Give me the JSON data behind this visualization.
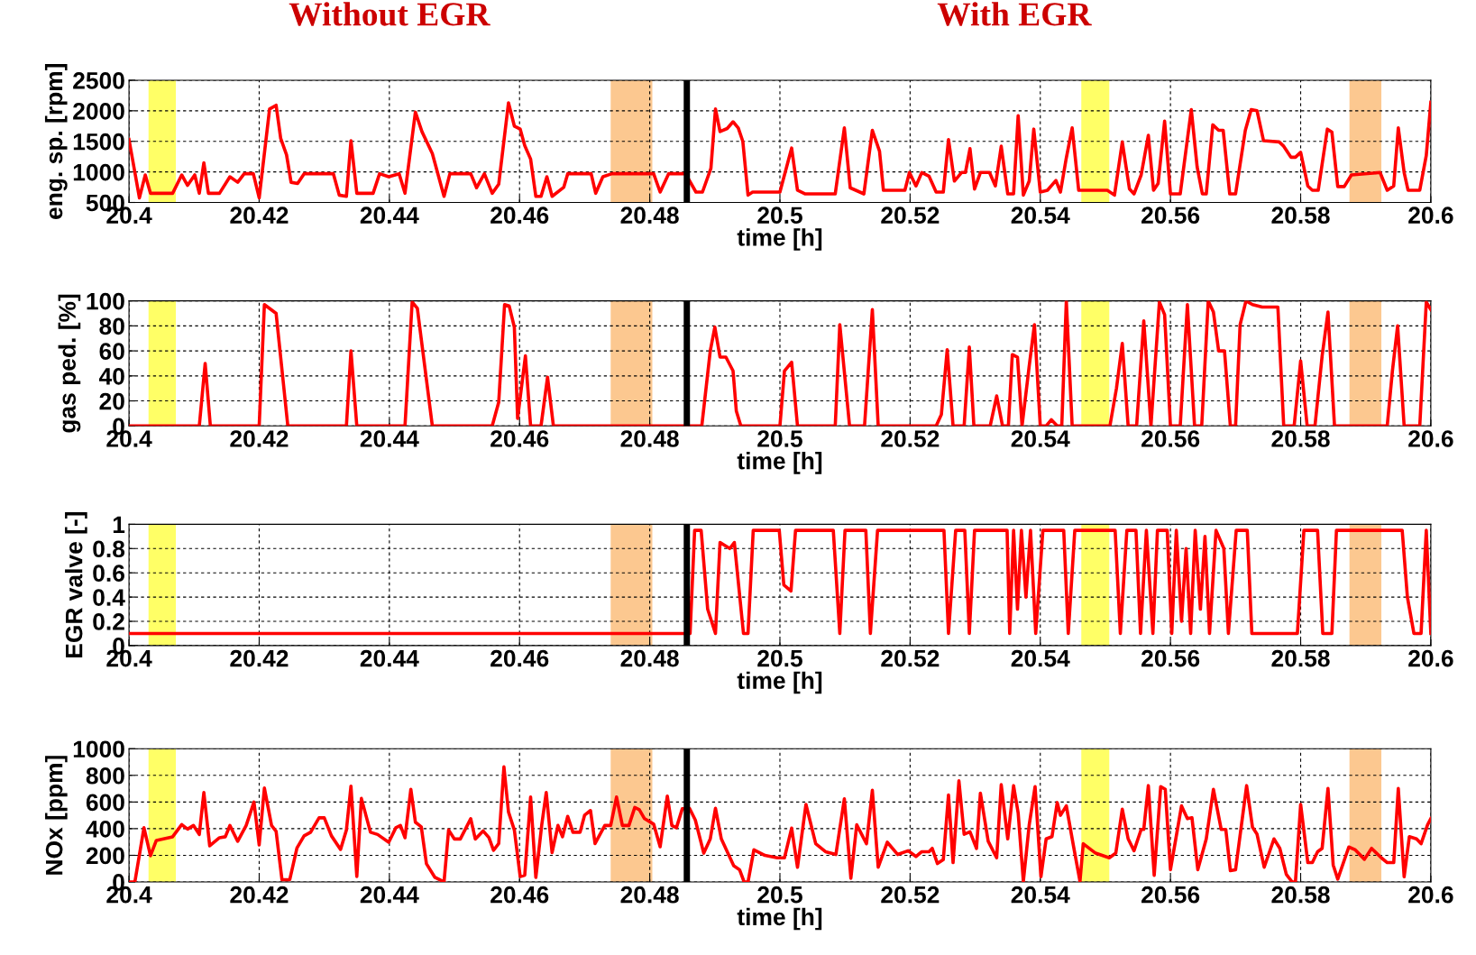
{
  "chart_data": [
    {
      "type": "line",
      "annotations": [
        "Without EGR",
        "With EGR"
      ],
      "xlabel": "time [h]",
      "ylabel": "eng. sp. [rpm]",
      "x": [
        20.4,
        20.4016,
        20.4025,
        20.4033,
        20.4067,
        20.4081,
        20.409,
        20.4101,
        20.4108,
        20.4115,
        20.4122,
        20.4139,
        20.4155,
        20.4167,
        20.4177,
        20.4191,
        20.42,
        20.4216,
        20.4226,
        20.4233,
        20.4242,
        20.4249,
        20.4259,
        20.4269,
        20.4314,
        20.4323,
        20.4334,
        20.4341,
        20.435,
        20.4375,
        20.4385,
        20.4399,
        20.4415,
        20.4424,
        20.444,
        20.445,
        20.4466,
        20.4484,
        20.4493,
        20.4525,
        20.4534,
        20.4546,
        20.4558,
        20.4568,
        20.4583,
        20.4592,
        20.4601,
        20.4608,
        20.4617,
        20.4625,
        20.4633,
        20.4642,
        20.465,
        20.4668,
        20.4674,
        20.471,
        20.4717,
        20.4728,
        20.4742,
        20.4806,
        20.4816,
        20.4829,
        20.4855,
        20.4871,
        20.4881,
        20.4894,
        20.4901,
        20.4908,
        20.4919,
        20.4928,
        20.4936,
        20.4943,
        20.4951,
        20.4958,
        20.5,
        20.5018,
        20.5027,
        20.5039,
        20.5085,
        20.5099,
        20.5108,
        20.5129,
        20.5142,
        20.5153,
        20.5159,
        20.5192,
        20.5199,
        20.5209,
        20.5218,
        20.5229,
        20.524,
        20.5251,
        20.5259,
        20.5268,
        20.5279,
        20.5285,
        20.5292,
        20.5299,
        20.5308,
        20.5322,
        20.5331,
        20.534,
        20.535,
        20.5359,
        20.5366,
        20.5374,
        20.5383,
        20.539,
        20.54,
        20.5411,
        20.5424,
        20.5431,
        20.544,
        20.5449,
        20.5459,
        20.5503,
        20.5514,
        20.5526,
        20.5537,
        20.5544,
        20.5555,
        20.5566,
        20.5574,
        20.5581,
        20.5591,
        20.56,
        20.5615,
        20.5632,
        20.5641,
        20.5649,
        20.5655,
        20.5665,
        20.5674,
        20.5681,
        20.5691,
        20.57,
        20.5715,
        20.5724,
        20.5733,
        20.5743,
        20.5767,
        20.5774,
        20.5785,
        20.5792,
        20.58,
        20.5811,
        20.5818,
        20.5827,
        20.5841,
        20.5848,
        20.5857,
        20.5867,
        20.5878,
        20.5922,
        20.5933,
        20.5943,
        20.595,
        20.5959,
        20.5965,
        20.5983,
        20.5993,
        20.6
      ],
      "series": [
        {
          "color": "#ff0000",
          "values": [
            1530,
            575,
            950,
            650,
            650,
            950,
            780,
            950,
            650,
            1150,
            650,
            650,
            920,
            830,
            970,
            970,
            575,
            2030,
            2090,
            1550,
            1280,
            830,
            810,
            970,
            970,
            620,
            600,
            1510,
            650,
            650,
            970,
            920,
            970,
            650,
            1980,
            1660,
            1300,
            600,
            970,
            970,
            740,
            970,
            650,
            800,
            2130,
            1750,
            1700,
            1430,
            1210,
            600,
            600,
            920,
            600,
            750,
            970,
            970,
            650,
            920,
            970,
            970,
            670,
            970,
            970,
            670,
            670,
            1060,
            2030,
            1660,
            1710,
            1820,
            1720,
            1500,
            620,
            670,
            670,
            1390,
            700,
            640,
            640,
            1720,
            740,
            640,
            1680,
            1340,
            700,
            700,
            990,
            770,
            990,
            930,
            670,
            670,
            1530,
            850,
            990,
            990,
            1380,
            720,
            990,
            990,
            770,
            1420,
            640,
            640,
            1920,
            620,
            850,
            1700,
            670,
            700,
            860,
            670,
            1230,
            1720,
            700,
            700,
            620,
            1490,
            720,
            640,
            950,
            1600,
            700,
            810,
            1830,
            640,
            640,
            2020,
            1080,
            640,
            640,
            1770,
            1680,
            1680,
            640,
            640,
            1680,
            2020,
            2000,
            1510,
            1490,
            1420,
            1240,
            1240,
            1320,
            770,
            700,
            700,
            1700,
            1650,
            760,
            760,
            950,
            990,
            700,
            770,
            1720,
            990,
            700,
            700,
            1270,
            2140
          ]
        }
      ],
      "xlim": [
        20.4,
        20.6
      ],
      "ylim": [
        500,
        2500
      ],
      "xticks": [
        20.4,
        20.42,
        20.44,
        20.46,
        20.48,
        20.5,
        20.52,
        20.54,
        20.56,
        20.58,
        20.6
      ],
      "yticks": [
        500,
        1000,
        1500,
        2000,
        2500
      ],
      "grid": true,
      "bands": [
        {
          "axis": "x",
          "from": 20.403,
          "to": 20.4072,
          "color": "#ffff66"
        },
        {
          "axis": "x",
          "from": 20.474,
          "to": 20.4804,
          "color": "#fcc890"
        },
        {
          "axis": "x",
          "from": 20.5463,
          "to": 20.5506,
          "color": "#ffff66"
        },
        {
          "axis": "x",
          "from": 20.5875,
          "to": 20.5924,
          "color": "#fcc890"
        }
      ],
      "ref_lines": [
        {
          "axis": "x",
          "value": 20.4857,
          "color": "#000000"
        }
      ]
    },
    {
      "type": "line",
      "xlabel": "time [h]",
      "ylabel": "gas ped. [%]",
      "x": [
        20.4,
        20.4108,
        20.4117,
        20.4125,
        20.42,
        20.4208,
        20.4226,
        20.4244,
        20.4334,
        20.4341,
        20.435,
        20.4424,
        20.4435,
        20.4443,
        20.4466,
        20.4558,
        20.4568,
        20.4577,
        20.4584,
        20.4592,
        20.4597,
        20.4609,
        20.4617,
        20.4633,
        20.4643,
        20.4652,
        20.488,
        20.4893,
        20.49,
        20.4908,
        20.4917,
        20.4928,
        20.4933,
        20.494,
        20.5,
        20.5007,
        20.5018,
        20.5027,
        20.5085,
        20.5092,
        20.5107,
        20.513,
        20.5142,
        20.5151,
        20.524,
        20.5248,
        20.5257,
        20.5266,
        20.5283,
        20.5291,
        20.5298,
        20.5323,
        20.5333,
        20.5342,
        20.5351,
        20.5357,
        20.5365,
        20.5372,
        20.5383,
        20.5391,
        20.54,
        20.5409,
        20.5417,
        20.5426,
        20.5433,
        20.544,
        20.5449,
        20.5507,
        20.5517,
        20.5526,
        20.5535,
        20.5548,
        20.5559,
        20.557,
        20.5583,
        20.5591,
        20.56,
        20.5615,
        20.5626,
        20.5637,
        20.5648,
        20.5658,
        20.5666,
        20.5674,
        20.5683,
        20.5692,
        20.57,
        20.5707,
        20.5716,
        20.5726,
        20.5741,
        20.5765,
        20.5774,
        20.579,
        20.58,
        20.581,
        20.5822,
        20.5833,
        20.5842,
        20.5852,
        20.5933,
        20.5941,
        20.5949,
        20.5959,
        20.5983,
        20.5993,
        20.6
      ],
      "series": [
        {
          "color": "#ff0000",
          "values": [
            0,
            0,
            50,
            0,
            0,
            97,
            90,
            0,
            0,
            60,
            0,
            0,
            99,
            94,
            0,
            0,
            19,
            97,
            96,
            79,
            6,
            56,
            0,
            0,
            39,
            0,
            0,
            60,
            79,
            55,
            55,
            44,
            12,
            0,
            0,
            44,
            51,
            0,
            0,
            81,
            0,
            0,
            93,
            0,
            0,
            9,
            61,
            0,
            0,
            63,
            0,
            0,
            24,
            0,
            0,
            57,
            55,
            0,
            48,
            81,
            0,
            0,
            5,
            0,
            0,
            100,
            0,
            0,
            30,
            66,
            0,
            0,
            84,
            0,
            99,
            89,
            0,
            0,
            97,
            0,
            0,
            100,
            91,
            60,
            60,
            0,
            0,
            81,
            100,
            97,
            95,
            95,
            0,
            0,
            52,
            0,
            0,
            56,
            91,
            0,
            0,
            44,
            80,
            0,
            0,
            99,
            93
          ]
        }
      ],
      "xlim": [
        20.4,
        20.6
      ],
      "ylim": [
        0,
        100
      ],
      "xticks": [
        20.4,
        20.42,
        20.44,
        20.46,
        20.48,
        20.5,
        20.52,
        20.54,
        20.56,
        20.58,
        20.6
      ],
      "yticks": [
        0,
        20,
        40,
        60,
        80,
        100
      ],
      "grid": true,
      "bands": [
        {
          "axis": "x",
          "from": 20.403,
          "to": 20.4072,
          "color": "#ffff66"
        },
        {
          "axis": "x",
          "from": 20.474,
          "to": 20.4804,
          "color": "#fcc890"
        },
        {
          "axis": "x",
          "from": 20.5463,
          "to": 20.5506,
          "color": "#ffff66"
        },
        {
          "axis": "x",
          "from": 20.5875,
          "to": 20.5924,
          "color": "#fcc890"
        }
      ],
      "ref_lines": [
        {
          "axis": "x",
          "value": 20.4857,
          "color": "#000000"
        }
      ]
    },
    {
      "type": "line",
      "xlabel": "time [h]",
      "ylabel": "EGR valve [-]",
      "x": [
        20.4,
        20.4855,
        20.4862,
        20.4869,
        20.4879,
        20.4889,
        20.4901,
        20.4908,
        20.4923,
        20.493,
        20.4944,
        20.4951,
        20.4959,
        20.4999,
        20.5006,
        20.5017,
        20.5024,
        20.5082,
        20.5092,
        20.51,
        20.5132,
        20.5139,
        20.515,
        20.5252,
        20.5259,
        20.527,
        20.5284,
        20.5291,
        20.5299,
        20.5349,
        20.5353,
        20.5359,
        20.5365,
        20.5371,
        20.5378,
        20.5385,
        20.5393,
        20.5404,
        20.5436,
        20.5443,
        20.5453,
        20.5515,
        20.5523,
        20.5533,
        20.5547,
        20.5554,
        20.5563,
        20.5573,
        20.558,
        20.5595,
        20.5602,
        20.5609,
        20.5617,
        20.5624,
        20.5631,
        20.5638,
        20.5646,
        20.5653,
        20.566,
        20.567,
        20.5682,
        20.5689,
        20.5701,
        20.5718,
        20.5725,
        20.5795,
        20.5805,
        20.5826,
        20.5834,
        20.5848,
        20.5855,
        20.5956,
        20.5964,
        20.5974,
        20.5985,
        20.5993,
        20.6
      ],
      "series": [
        {
          "color": "#ff0000",
          "values": [
            0.1,
            0.1,
            0.1,
            0.95,
            0.95,
            0.3,
            0.1,
            0.85,
            0.8,
            0.85,
            0.1,
            0.1,
            0.95,
            0.95,
            0.5,
            0.45,
            0.95,
            0.95,
            0.1,
            0.95,
            0.95,
            0.1,
            0.95,
            0.95,
            0.1,
            0.95,
            0.95,
            0.1,
            0.95,
            0.95,
            0.1,
            0.95,
            0.3,
            0.95,
            0.4,
            0.95,
            0.1,
            0.95,
            0.95,
            0.1,
            0.95,
            0.95,
            0.1,
            0.95,
            0.95,
            0.1,
            0.95,
            0.1,
            0.95,
            0.95,
            0.1,
            0.95,
            0.2,
            0.8,
            0.1,
            0.95,
            0.3,
            0.9,
            0.1,
            0.95,
            0.8,
            0.1,
            0.95,
            0.95,
            0.1,
            0.1,
            0.95,
            0.95,
            0.1,
            0.1,
            0.95,
            0.95,
            0.4,
            0.1,
            0.1,
            0.95,
            0.1
          ]
        }
      ],
      "xlim": [
        20.4,
        20.6
      ],
      "ylim": [
        0,
        1
      ],
      "xticks": [
        20.4,
        20.42,
        20.44,
        20.46,
        20.48,
        20.5,
        20.52,
        20.54,
        20.56,
        20.58,
        20.6
      ],
      "yticks": [
        0,
        0.2,
        0.4,
        0.6,
        0.8,
        1
      ],
      "grid": true,
      "bands": [
        {
          "axis": "x",
          "from": 20.403,
          "to": 20.4072,
          "color": "#ffff66"
        },
        {
          "axis": "x",
          "from": 20.474,
          "to": 20.4804,
          "color": "#fcc890"
        },
        {
          "axis": "x",
          "from": 20.5463,
          "to": 20.5506,
          "color": "#ffff66"
        },
        {
          "axis": "x",
          "from": 20.5875,
          "to": 20.5924,
          "color": "#fcc890"
        }
      ],
      "ref_lines": [
        {
          "axis": "x",
          "value": 20.4857,
          "color": "#000000"
        }
      ]
    },
    {
      "type": "line",
      "xlabel": "time [h]",
      "ylabel": "NOx [ppm]",
      "x": [
        20.4,
        20.4009,
        20.4023,
        20.4033,
        20.4042,
        20.4067,
        20.4081,
        20.409,
        20.4099,
        20.4108,
        20.4115,
        20.4124,
        20.4139,
        20.4148,
        20.4155,
        20.4167,
        20.418,
        20.4192,
        20.42,
        20.4208,
        20.4219,
        20.4226,
        20.4235,
        20.4247,
        20.4258,
        20.4269,
        20.4279,
        20.4292,
        20.43,
        20.4311,
        20.4325,
        20.4334,
        20.4341,
        20.435,
        20.4357,
        20.4371,
        20.4382,
        20.4399,
        20.441,
        20.4417,
        20.4424,
        20.4433,
        20.444,
        20.4449,
        20.4457,
        20.447,
        20.4484,
        20.4491,
        20.45,
        20.4509,
        20.4525,
        20.4532,
        20.4544,
        20.4553,
        20.456,
        20.4568,
        20.4576,
        20.4583,
        20.4592,
        20.4601,
        20.4608,
        20.4617,
        20.4625,
        20.4634,
        20.4641,
        20.465,
        20.4659,
        20.4666,
        20.4674,
        20.4682,
        20.4693,
        20.47,
        20.4709,
        20.4716,
        20.4731,
        20.474,
        20.4749,
        20.4758,
        20.4768,
        20.4777,
        20.4784,
        20.4792,
        20.4806,
        20.4816,
        20.4827,
        20.4834,
        20.4841,
        20.485,
        20.4861,
        20.487,
        20.4883,
        20.4893,
        20.4901,
        20.491,
        20.4929,
        20.4938,
        20.4945,
        20.4951,
        20.496,
        20.4977,
        20.4996,
        20.5007,
        20.5018,
        20.5027,
        20.504,
        20.5055,
        20.507,
        20.5086,
        20.5099,
        20.5109,
        20.5118,
        20.5133,
        20.5142,
        20.5151,
        20.5165,
        20.5181,
        20.5197,
        20.5209,
        20.5218,
        20.5229,
        20.5234,
        20.5242,
        20.5251,
        20.5259,
        20.5266,
        20.5275,
        20.5283,
        20.5292,
        20.5302,
        20.5308,
        20.532,
        20.5333,
        20.534,
        20.535,
        20.5359,
        20.5366,
        20.5374,
        20.5383,
        20.5392,
        20.5401,
        20.5409,
        20.5418,
        20.5426,
        20.5431,
        20.544,
        20.5451,
        20.5461,
        20.5466,
        20.5485,
        20.5506,
        20.5516,
        20.5526,
        20.5535,
        20.5544,
        20.5555,
        20.5559,
        20.5566,
        20.5575,
        20.5585,
        20.5592,
        20.56,
        20.5617,
        20.5626,
        20.5633,
        20.5642,
        20.5655,
        20.5666,
        20.5678,
        20.5685,
        20.5692,
        20.57,
        20.5717,
        20.5726,
        20.5733,
        20.5744,
        20.5759,
        20.5768,
        20.5778,
        20.5787,
        20.5792,
        20.58,
        20.5811,
        20.5818,
        20.5826,
        20.5833,
        20.5842,
        20.585,
        20.5857,
        20.5874,
        20.5884,
        20.5898,
        20.5909,
        20.5924,
        20.5933,
        20.5943,
        20.595,
        20.5959,
        20.5967,
        20.5978,
        20.5985,
        20.5995,
        20.6
      ],
      "series": [
        {
          "color": "#ff0000",
          "values": [
            0,
            0,
            407,
            197,
            312,
            339,
            431,
            397,
            424,
            356,
            671,
            271,
            332,
            339,
            424,
            305,
            424,
            600,
            278,
            705,
            424,
            380,
            17,
            17,
            254,
            346,
            373,
            481,
            481,
            346,
            244,
            390,
            719,
            41,
            627,
            373,
            356,
            298,
            407,
            424,
            332,
            695,
            448,
            414,
            136,
            34,
            0,
            390,
            322,
            322,
            475,
            322,
            383,
            332,
            237,
            288,
            864,
            525,
            390,
            41,
            51,
            637,
            34,
            424,
            671,
            220,
            424,
            339,
            492,
            373,
            373,
            502,
            536,
            288,
            424,
            424,
            637,
            424,
            424,
            559,
            542,
            475,
            434,
            264,
            644,
            424,
            407,
            549,
            553,
            465,
            216,
            323,
            553,
            323,
            121,
            92,
            0,
            0,
            241,
            199,
            181,
            181,
            404,
            110,
            582,
            287,
            227,
            206,
            624,
            28,
            429,
            287,
            688,
            110,
            298,
            206,
            234,
            191,
            227,
            227,
            252,
            138,
            167,
            653,
            145,
            759,
            358,
            376,
            252,
            667,
            305,
            181,
            730,
            323,
            723,
            518,
            4,
            429,
            716,
            39,
            323,
            340,
            596,
            500,
            571,
            270,
            4,
            287,
            216,
            181,
            216,
            546,
            323,
            234,
            394,
            394,
            723,
            50,
            716,
            695,
            92,
            571,
            475,
            482,
            92,
            323,
            695,
            394,
            394,
            85,
            92,
            723,
            411,
            358,
            110,
            323,
            252,
            57,
            0,
            0,
            582,
            145,
            145,
            227,
            252,
            702,
            127,
            21,
            262,
            241,
            170,
            252,
            181,
            145,
            145,
            702,
            39,
            340,
            323,
            287,
            429,
            475
          ]
        }
      ],
      "xlim": [
        20.4,
        20.6
      ],
      "ylim": [
        0,
        1000
      ],
      "xticks": [
        20.4,
        20.42,
        20.44,
        20.46,
        20.48,
        20.5,
        20.52,
        20.54,
        20.56,
        20.58,
        20.6
      ],
      "yticks": [
        0,
        200,
        400,
        600,
        800,
        1000
      ],
      "grid": true,
      "bands": [
        {
          "axis": "x",
          "from": 20.403,
          "to": 20.4072,
          "color": "#ffff66"
        },
        {
          "axis": "x",
          "from": 20.474,
          "to": 20.4804,
          "color": "#fcc890"
        },
        {
          "axis": "x",
          "from": 20.5463,
          "to": 20.5506,
          "color": "#ffff66"
        },
        {
          "axis": "x",
          "from": 20.5875,
          "to": 20.5924,
          "color": "#fcc890"
        }
      ],
      "ref_lines": [
        {
          "axis": "x",
          "value": 20.4857,
          "color": "#000000"
        }
      ]
    }
  ]
}
